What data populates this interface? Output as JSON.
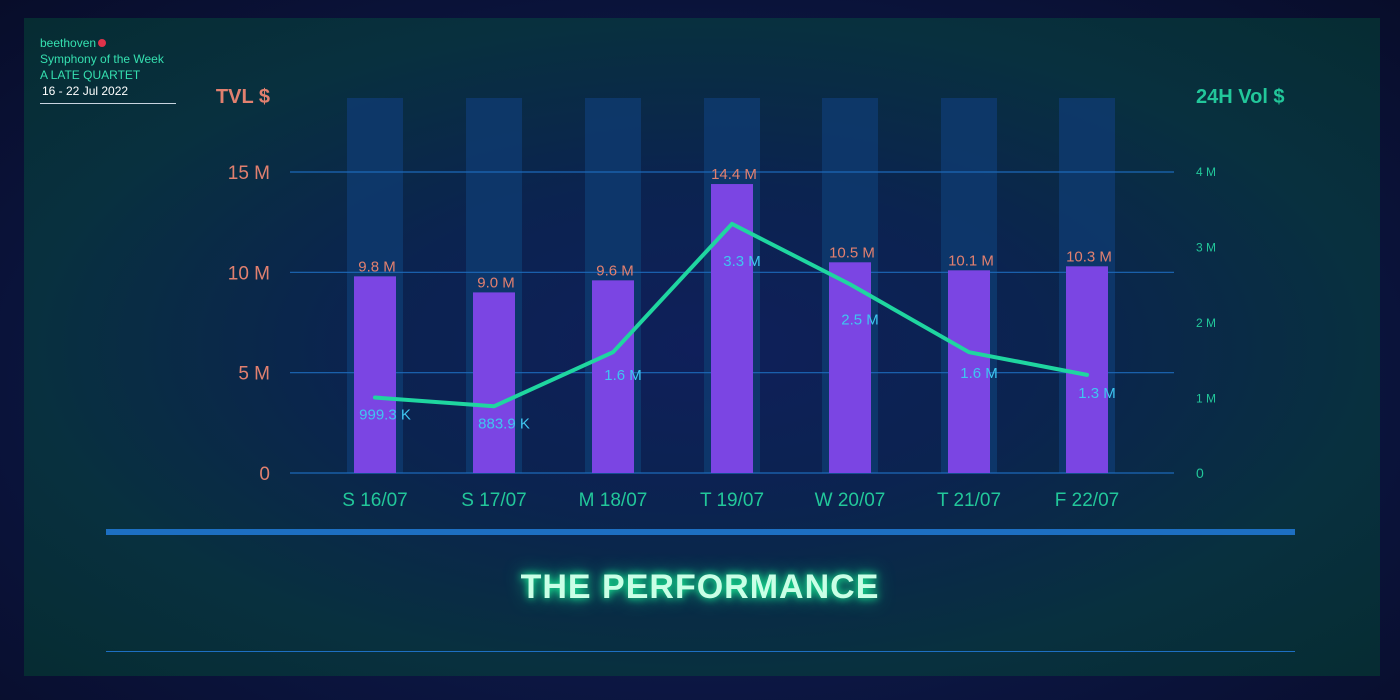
{
  "header": {
    "brand": "beethoven",
    "subtitle": "Symphony of the Week",
    "series_title": "A LATE QUARTET",
    "date_range": "16 - 22 Jul 2022"
  },
  "footer": {
    "title": "THE PERFORMANCE"
  },
  "colors": {
    "bar": "#7b45e3",
    "bar_bg": "#0e3a6e",
    "line": "#1fd6a0",
    "left_axis": "#e2806f",
    "right_axis": "#22c79a",
    "line_label": "#3fc6f0",
    "grid": "#1c68b8"
  },
  "chart_data": {
    "type": "bar",
    "categories": [
      "S 16/07",
      "S 17/07",
      "M 18/07",
      "T 19/07",
      "W 20/07",
      "T 21/07",
      "F 22/07"
    ],
    "left_axis": {
      "label": "TVL $",
      "ticks": [
        "0",
        "5 M",
        "10 M",
        "15 M"
      ],
      "tick_values": [
        0,
        5,
        10,
        15
      ],
      "ylim": [
        0,
        15
      ],
      "unit": "M"
    },
    "right_axis": {
      "label": "24H Vol $",
      "ticks": [
        "0",
        "1 M",
        "2 M",
        "3 M",
        "4 M"
      ],
      "tick_values": [
        0,
        1,
        2,
        3,
        4
      ],
      "ylim": [
        0,
        4
      ],
      "unit": "M"
    },
    "series": [
      {
        "type": "bar",
        "axis": "left",
        "values": [
          9.8,
          9.0,
          9.6,
          14.4,
          10.5,
          10.1,
          10.3
        ],
        "labels": [
          "9.8 M",
          "9.0 M",
          "9.6 M",
          "14.4 M",
          "10.5 M",
          "10.1 M",
          "10.3 M"
        ]
      },
      {
        "type": "line",
        "axis": "right",
        "values": [
          0.9993,
          0.8839,
          1.6,
          3.3,
          2.5,
          1.6,
          1.3
        ],
        "labels": [
          "999.3 K",
          "883.9 K",
          "1.6 M",
          "3.3 M",
          "2.5 M",
          "1.6 M",
          "1.3 M"
        ]
      }
    ],
    "grid": true
  }
}
